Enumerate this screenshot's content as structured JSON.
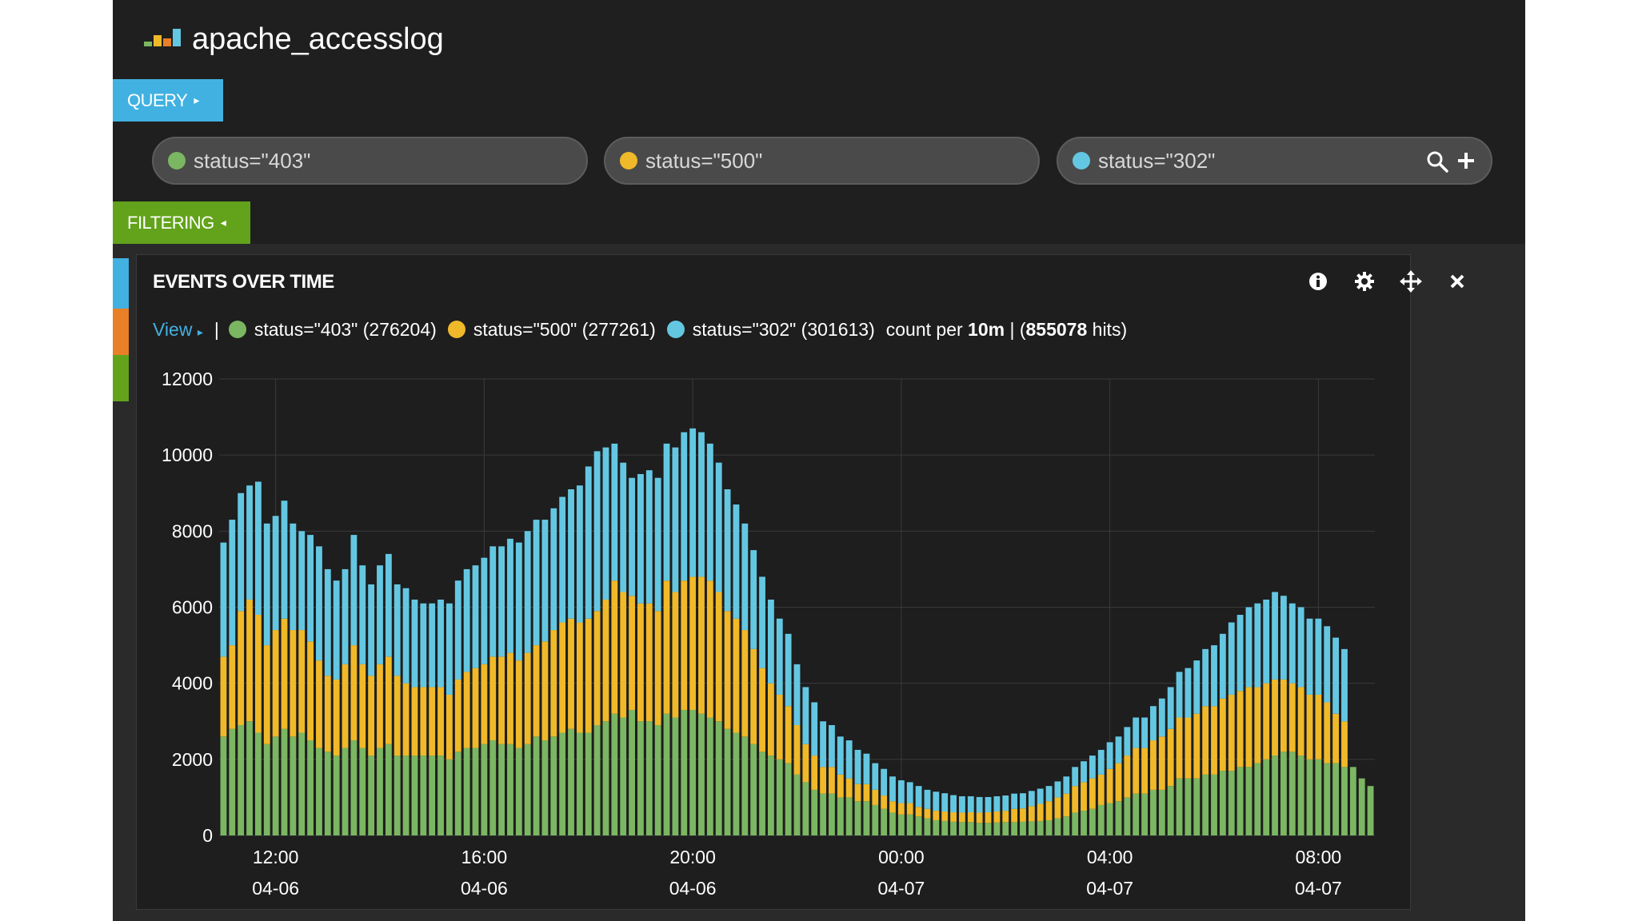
{
  "app": {
    "title": "apache_accesslog"
  },
  "query": {
    "tab_label": "QUERY",
    "queries": [
      {
        "label": "status=\"403\"",
        "color": "#7bb662"
      },
      {
        "label": "status=\"500\"",
        "color": "#f0b929"
      },
      {
        "label": "status=\"302\"",
        "color": "#64c7e2"
      }
    ],
    "search_icon": "search-icon",
    "add_icon": "plus-icon"
  },
  "filtering": {
    "tab_label": "FILTERING"
  },
  "panel": {
    "title": "EVENTS OVER TIME",
    "controls": [
      "info-icon",
      "gear-icon",
      "move-icon",
      "close-icon"
    ],
    "legend": {
      "view_label": "View",
      "separator": "|",
      "items": [
        {
          "label": "status=\"403\" (276204)",
          "color": "#7bb662"
        },
        {
          "label": "status=\"500\" (277261)",
          "color": "#f0b929"
        },
        {
          "label": "status=\"302\" (301613)",
          "color": "#64c7e2"
        }
      ],
      "count_prefix": "count per",
      "interval": "10m",
      "hits_open": "| (",
      "hits": "855078",
      "hits_suffix": "hits)"
    }
  },
  "chart_data": {
    "type": "bar",
    "stacked": true,
    "bar_interval": "10m",
    "x": {
      "ticks": [
        {
          "time": "12:00",
          "date": "04-06"
        },
        {
          "time": "16:00",
          "date": "04-06"
        },
        {
          "time": "20:00",
          "date": "04-06"
        },
        {
          "time": "00:00",
          "date": "04-07"
        },
        {
          "time": "04:00",
          "date": "04-07"
        },
        {
          "time": "08:00",
          "date": "04-07"
        }
      ],
      "range": [
        "04-06 11:00",
        "04-07 10:20"
      ]
    },
    "ylim": [
      0,
      12000
    ],
    "y_ticks": [
      0,
      2000,
      4000,
      6000,
      8000,
      10000,
      12000
    ],
    "grid": true,
    "series": [
      {
        "name": "status=\"403\"",
        "color": "#7bb662",
        "values": [
          2600,
          2800,
          2900,
          3000,
          2700,
          2400,
          2600,
          2800,
          2600,
          2700,
          2500,
          2300,
          2200,
          2100,
          2300,
          2500,
          2300,
          2100,
          2300,
          2400,
          2100,
          2100,
          2100,
          2100,
          2100,
          2100,
          2000,
          2200,
          2300,
          2300,
          2400,
          2500,
          2400,
          2400,
          2300,
          2400,
          2600,
          2500,
          2600,
          2700,
          2800,
          2700,
          2700,
          2900,
          3000,
          3200,
          3100,
          3300,
          3000,
          3000,
          2900,
          3200,
          3100,
          3300,
          3300,
          3200,
          3100,
          3000,
          2800,
          2700,
          2600,
          2400,
          2200,
          2100,
          2000,
          1900,
          1600,
          1400,
          1200,
          1100,
          1100,
          1000,
          1000,
          900,
          900,
          800,
          700,
          600,
          550,
          550,
          500,
          450,
          400,
          380,
          360,
          350,
          350,
          330,
          330,
          340,
          350,
          350,
          360,
          370,
          380,
          400,
          450,
          500,
          600,
          650,
          700,
          800,
          850,
          900,
          1000,
          1100,
          1100,
          1200,
          1200,
          1300,
          1500,
          1500,
          1500,
          1600,
          1600,
          1700,
          1700,
          1800,
          1800,
          1900,
          2000,
          2100,
          2200,
          2200,
          2100,
          2000,
          2000,
          1900,
          1900,
          1800,
          1800,
          1500,
          1300
        ]
      },
      {
        "name": "status=\"500\"",
        "color": "#f0b929",
        "values": [
          2100,
          2200,
          3000,
          3200,
          3100,
          2600,
          2800,
          2900,
          2800,
          2700,
          2600,
          2300,
          2000,
          2000,
          2200,
          2500,
          2200,
          2100,
          2200,
          2300,
          2100,
          1900,
          1800,
          1800,
          1800,
          1800,
          1700,
          1900,
          2000,
          2100,
          2100,
          2200,
          2300,
          2400,
          2300,
          2400,
          2400,
          2600,
          2800,
          2900,
          2900,
          2900,
          3000,
          3000,
          3200,
          3500,
          3300,
          3000,
          3100,
          3100,
          3000,
          3500,
          3300,
          3400,
          3500,
          3600,
          3600,
          3400,
          3100,
          3000,
          2800,
          2500,
          2200,
          1900,
          1700,
          1500,
          1300,
          1000,
          900,
          700,
          700,
          600,
          500,
          450,
          450,
          400,
          350,
          300,
          300,
          300,
          250,
          250,
          250,
          250,
          250,
          250,
          260,
          270,
          280,
          290,
          300,
          350,
          350,
          400,
          450,
          500,
          550,
          600,
          700,
          750,
          800,
          800,
          900,
          1000,
          1100,
          1200,
          1200,
          1300,
          1400,
          1500,
          1600,
          1600,
          1700,
          1800,
          1800,
          1900,
          2000,
          2000,
          2100,
          2000,
          2000,
          2000,
          1900,
          1800,
          1800,
          1700,
          1700,
          1600,
          1300,
          1200
        ]
      },
      {
        "name": "status=\"302\"",
        "color": "#64c7e2",
        "values": [
          3000,
          3300,
          3100,
          3000,
          3500,
          3200,
          3000,
          3100,
          2800,
          2600,
          2800,
          3000,
          2800,
          2600,
          2500,
          2900,
          2600,
          2400,
          2600,
          2700,
          2400,
          2500,
          2300,
          2200,
          2200,
          2300,
          2400,
          2600,
          2700,
          2700,
          2800,
          2900,
          2900,
          3000,
          3100,
          3200,
          3300,
          3200,
          3200,
          3300,
          3400,
          3600,
          4000,
          4200,
          4000,
          3600,
          3400,
          3100,
          3400,
          3500,
          3500,
          3600,
          3800,
          3900,
          3900,
          3800,
          3600,
          3400,
          3200,
          3000,
          2800,
          2600,
          2400,
          2200,
          2000,
          1900,
          1600,
          1500,
          1400,
          1200,
          1100,
          1000,
          1000,
          900,
          800,
          700,
          700,
          650,
          600,
          550,
          550,
          500,
          500,
          480,
          450,
          430,
          420,
          410,
          400,
          400,
          400,
          400,
          400,
          400,
          400,
          400,
          420,
          450,
          500,
          550,
          600,
          650,
          700,
          700,
          750,
          800,
          800,
          900,
          1000,
          1100,
          1200,
          1300,
          1400,
          1500,
          1600,
          1700,
          1900,
          2000,
          2100,
          2200,
          2200,
          2300,
          2200,
          2100,
          2100,
          2000,
          2000,
          2000,
          2000,
          1900,
          1900
        ]
      }
    ]
  }
}
